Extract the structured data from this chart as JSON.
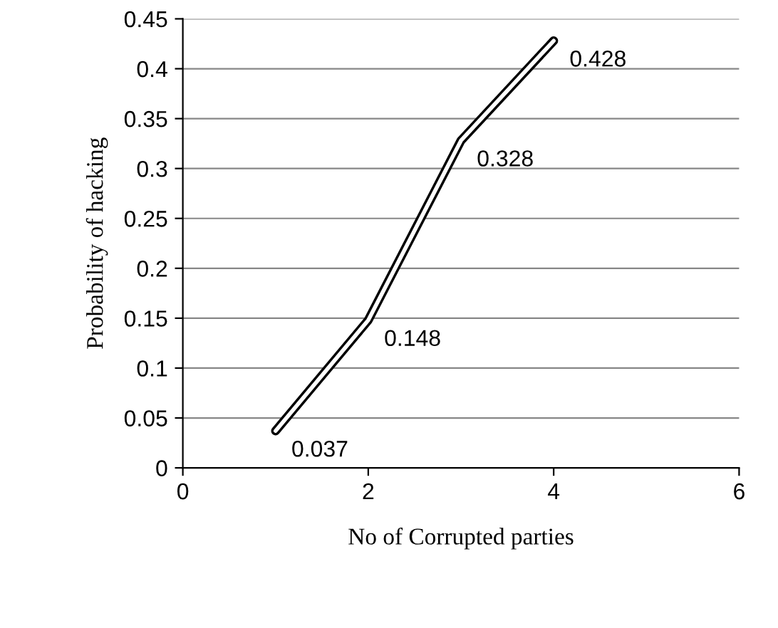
{
  "chart_data": {
    "type": "line",
    "xlabel": "No of Corrupted parties",
    "ylabel": "Probability of hacking",
    "x": [
      1,
      2,
      3,
      4
    ],
    "series": [
      {
        "color": "#000000",
        "values": [
          0.037,
          0.148,
          0.328,
          0.428
        ]
      }
    ],
    "data_labels": true,
    "xlim": [
      0,
      6
    ],
    "xticks": [
      0,
      2,
      4,
      6
    ],
    "ylim": [
      0,
      0.45
    ],
    "yticks": [
      0,
      0.05,
      0.1,
      0.15,
      0.2,
      0.25,
      0.3,
      0.35,
      0.4,
      0.45
    ],
    "grid": "y"
  }
}
